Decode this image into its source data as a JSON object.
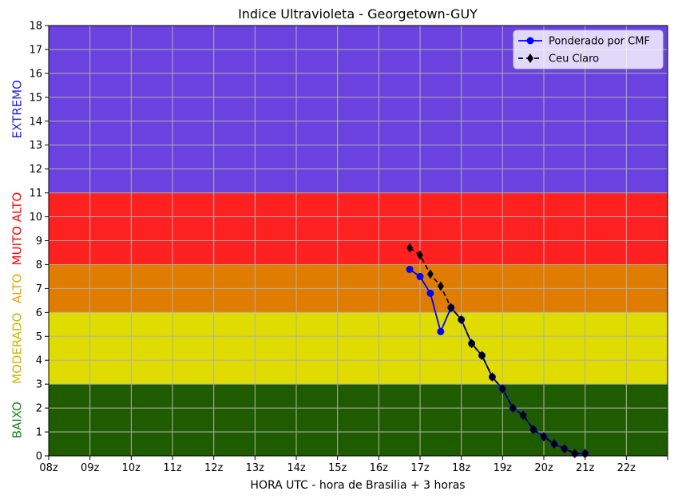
{
  "chart_data": {
    "type": "line",
    "title": "Indice Ultravioleta - Georgetown-GUY",
    "xlabel": "HORA UTC - hora de Brasilia + 3 horas",
    "ylabel": "",
    "xlim": [
      8,
      23
    ],
    "ylim": [
      0,
      18
    ],
    "x_ticks": [
      {
        "value": 8,
        "label": "08z"
      },
      {
        "value": 9,
        "label": "09z"
      },
      {
        "value": 10,
        "label": "10z"
      },
      {
        "value": 11,
        "label": "11z"
      },
      {
        "value": 12,
        "label": "12z"
      },
      {
        "value": 13,
        "label": "13z"
      },
      {
        "value": 14,
        "label": "14z"
      },
      {
        "value": 15,
        "label": "15z"
      },
      {
        "value": 16,
        "label": "16z"
      },
      {
        "value": 17,
        "label": "17z"
      },
      {
        "value": 18,
        "label": "18z"
      },
      {
        "value": 19,
        "label": "19z"
      },
      {
        "value": 20,
        "label": "20z"
      },
      {
        "value": 21,
        "label": "21z"
      },
      {
        "value": 22,
        "label": "22z"
      },
      {
        "value": 23,
        "label": ""
      }
    ],
    "y_ticks": [
      0,
      1,
      2,
      3,
      4,
      5,
      6,
      7,
      8,
      9,
      10,
      11,
      12,
      13,
      14,
      15,
      16,
      17,
      18
    ],
    "grid": true,
    "legend_position": "top-right",
    "bands": [
      {
        "label": "BAIXO",
        "from": 0,
        "to": 3,
        "color": "#1f5c00",
        "label_color": "#1a8a1a"
      },
      {
        "label": "MODERADO",
        "from": 3,
        "to": 6,
        "color": "#e0dc00",
        "label_color": "#c9b800"
      },
      {
        "label": "ALTO",
        "from": 6,
        "to": 8,
        "color": "#e07c00",
        "label_color": "#f5a000"
      },
      {
        "label": "MUITO ALTO",
        "from": 8,
        "to": 11,
        "color": "#ff2020",
        "label_color": "#ff0000"
      },
      {
        "label": "EXTREMO",
        "from": 11,
        "to": 18,
        "color": "#6a42e0",
        "label_color": "#2020e0"
      }
    ],
    "series": [
      {
        "name": "Ponderado por CMF",
        "color": "#0000ff",
        "marker": "circle",
        "line_style": "solid",
        "x": [
          16.75,
          17.0,
          17.25,
          17.5,
          17.75,
          18.0,
          18.25,
          18.5,
          18.75,
          19.0,
          19.25,
          19.5,
          19.75,
          20.0,
          20.25,
          20.5,
          20.75,
          21.0
        ],
        "values": [
          7.8,
          7.5,
          6.8,
          5.2,
          6.2,
          5.7,
          4.7,
          4.2,
          3.3,
          2.8,
          2.0,
          1.7,
          1.1,
          0.8,
          0.5,
          0.3,
          0.1,
          0.1
        ]
      },
      {
        "name": "Ceu Claro",
        "color": "#000000",
        "marker": "diamond",
        "line_style": "dashed",
        "x": [
          16.75,
          17.0,
          17.25,
          17.5,
          17.75,
          18.0,
          18.25,
          18.5,
          18.75,
          19.0,
          19.25,
          19.5,
          19.75,
          20.0,
          20.25,
          20.5,
          20.75,
          21.0
        ],
        "values": [
          8.7,
          8.4,
          7.6,
          7.1,
          6.2,
          5.7,
          4.7,
          4.2,
          3.3,
          2.8,
          2.0,
          1.7,
          1.1,
          0.8,
          0.5,
          0.3,
          0.1,
          0.1
        ]
      }
    ]
  }
}
